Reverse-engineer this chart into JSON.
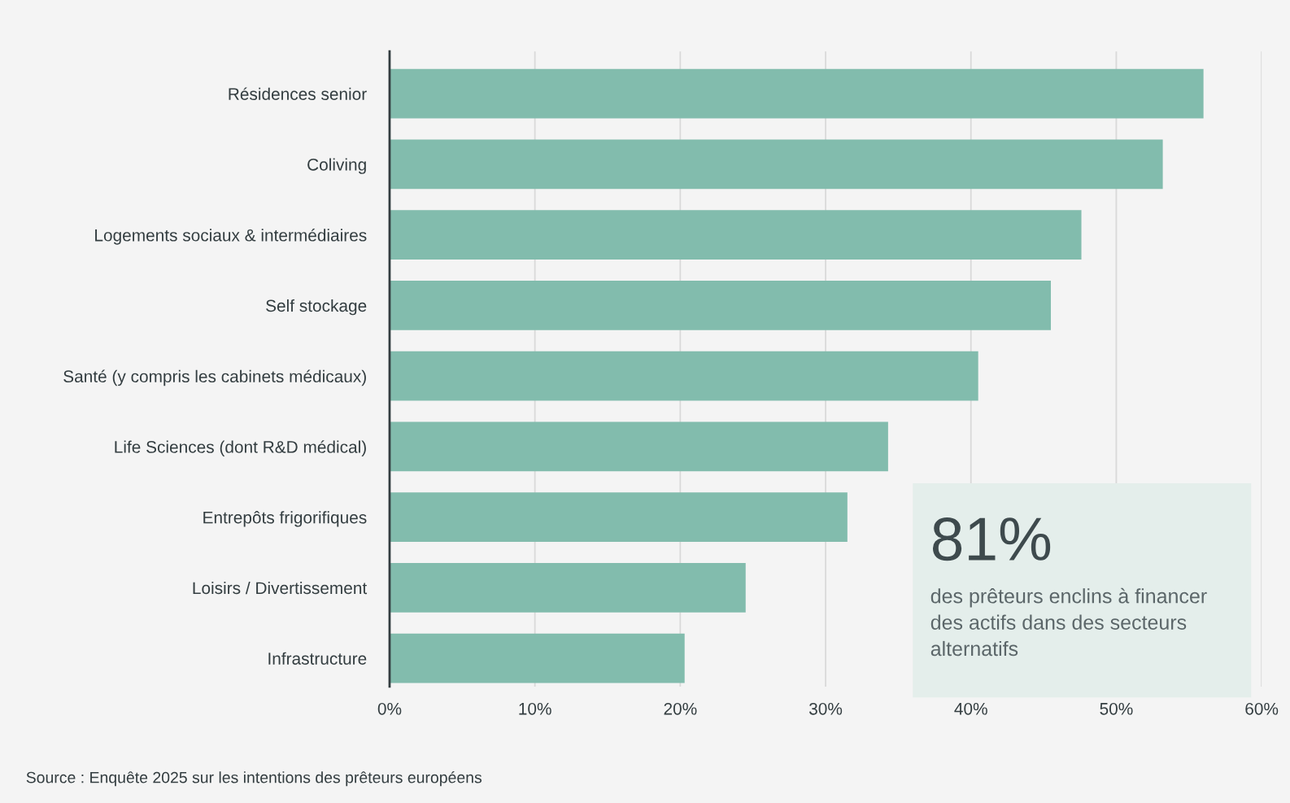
{
  "chart_data": {
    "type": "bar",
    "orientation": "horizontal",
    "categories": [
      "Résidences senior",
      "Coliving",
      "Logements sociaux & intermédiaires",
      "Self stockage",
      "Santé (y compris les cabinets médicaux)",
      "Life Sciences (dont R&D médical)",
      "Entrepôts frigorifiques",
      "Loisirs / Divertissement",
      "Infrastructure"
    ],
    "values": [
      56,
      53.2,
      47.6,
      45.5,
      40.5,
      34.3,
      31.5,
      24.5,
      20.3
    ],
    "color": "#82bcad",
    "xlim": [
      0,
      60
    ],
    "xticks": [
      {
        "value": 0,
        "label": "0%"
      },
      {
        "value": 10,
        "label": "10%"
      },
      {
        "value": 20,
        "label": "20%"
      },
      {
        "value": 30,
        "label": "30%"
      },
      {
        "value": 40,
        "label": "40%"
      },
      {
        "value": 50,
        "label": "50%"
      },
      {
        "value": 60,
        "label": "60%"
      }
    ],
    "grid": "x",
    "annotations": [
      "81%",
      "des prêteurs enclins à financer\ndes actifs dans des secteurs\nalternatifs",
      "Source : Enquête 2025 sur les intentions des prêteurs européens"
    ]
  }
}
